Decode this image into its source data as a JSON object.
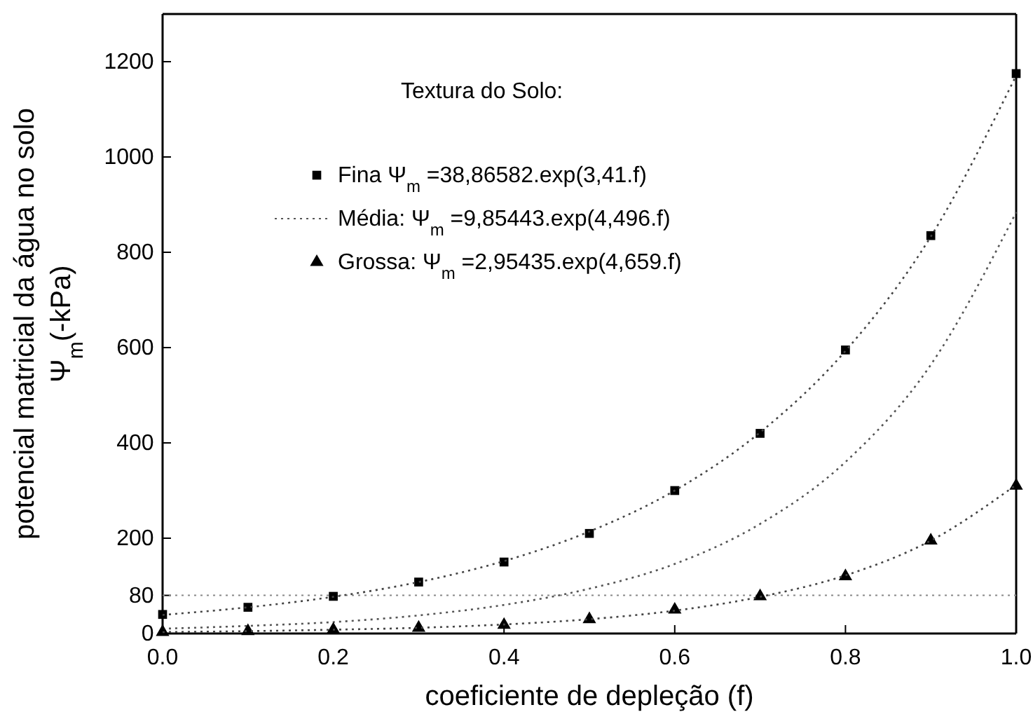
{
  "chart_data": {
    "type": "scatter",
    "xlabel": "coeficiente de depleção (f)",
    "ylabel": "potencial matricial da água no solo\nΨ$_{m}$(-kPa)",
    "legend_title": "Textura do Solo:",
    "legend": "top",
    "grid": false,
    "xlim": [
      0,
      1
    ],
    "xticks": [
      {
        "value": 0,
        "label": "0.0"
      },
      {
        "value": 0.2,
        "label": "0.2"
      },
      {
        "value": 0.4,
        "label": "0.4"
      },
      {
        "value": 0.6,
        "label": "0.6"
      },
      {
        "value": 0.8,
        "label": "0.8"
      },
      {
        "value": 1,
        "label": "1.0"
      }
    ],
    "ylim": [
      0,
      1300
    ],
    "yticks": [
      0,
      80,
      200,
      400,
      600,
      800,
      1000,
      1200
    ],
    "ref_lines": [
      {
        "axis": "y",
        "value": 80,
        "label": null,
        "line_style": "dotted",
        "color": "#888888"
      }
    ],
    "series": [
      {
        "name": "Fina Ψ$_{m}$ =38,86582.exp(3,41.f)",
        "marker": "square",
        "color": "#000000",
        "x": [
          0,
          0.1,
          0.2,
          0.3,
          0.4,
          0.5,
          0.6,
          0.7,
          0.8,
          0.9,
          1
        ],
        "values": [
          40,
          55,
          78,
          108,
          150,
          210,
          300,
          420,
          595,
          835,
          1175
        ]
      },
      {
        "type": "line",
        "line_style": "dotted",
        "marker": "none",
        "color": "#444444",
        "x": [
          0,
          0.1,
          0.2,
          0.3,
          0.4,
          0.5,
          0.6,
          0.7,
          0.8,
          0.9,
          1
        ],
        "values": [
          39,
          55,
          77,
          108,
          152,
          214,
          300,
          422,
          593,
          833,
          1171
        ]
      },
      {
        "name": "Média: Ψ$_{m}$ =9,85443.exp(4,496.f)",
        "type": "line",
        "line_style": "dotted",
        "marker": "none",
        "color": "#555555",
        "x": [
          0,
          0.1,
          0.2,
          0.3,
          0.4,
          0.5,
          0.6,
          0.7,
          0.8,
          0.9,
          1
        ],
        "values": [
          10,
          16,
          24,
          38,
          60,
          94,
          146,
          230,
          360,
          564,
          884
        ]
      },
      {
        "name": "Grossa: Ψ$_{m}$ =2,95435.exp(4,659.f)",
        "marker": "triangle",
        "color": "#000000",
        "x": [
          0,
          0.1,
          0.2,
          0.3,
          0.4,
          0.5,
          0.6,
          0.7,
          0.8,
          0.9,
          1
        ],
        "values": [
          3,
          5,
          8,
          12,
          18,
          30,
          50,
          78,
          120,
          195,
          310
        ]
      },
      {
        "type": "line",
        "line_style": "dotted",
        "marker": "none",
        "color": "#444444",
        "x": [
          0,
          0.1,
          0.2,
          0.3,
          0.4,
          0.5,
          0.6,
          0.7,
          0.8,
          0.9,
          1
        ],
        "values": [
          3,
          5,
          8,
          12,
          19,
          30,
          48,
          77,
          122,
          195,
          312
        ]
      }
    ]
  }
}
